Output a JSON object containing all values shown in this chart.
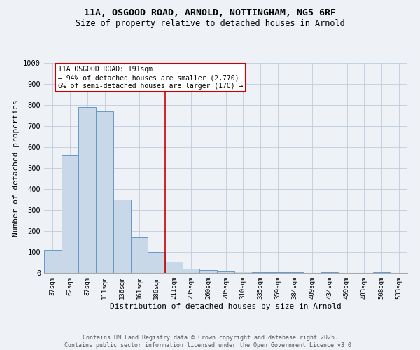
{
  "title_line1": "11A, OSGOOD ROAD, ARNOLD, NOTTINGHAM, NG5 6RF",
  "title_line2": "Size of property relative to detached houses in Arnold",
  "xlabel": "Distribution of detached houses by size in Arnold",
  "ylabel": "Number of detached properties",
  "categories": [
    "37sqm",
    "62sqm",
    "87sqm",
    "111sqm",
    "136sqm",
    "161sqm",
    "186sqm",
    "211sqm",
    "235sqm",
    "260sqm",
    "285sqm",
    "310sqm",
    "335sqm",
    "359sqm",
    "384sqm",
    "409sqm",
    "434sqm",
    "459sqm",
    "483sqm",
    "508sqm",
    "533sqm"
  ],
  "values": [
    110,
    560,
    790,
    770,
    350,
    170,
    100,
    55,
    20,
    15,
    10,
    7,
    5,
    3,
    2,
    1,
    5,
    1,
    1,
    5,
    1
  ],
  "bar_color": "#c8d8e8",
  "bar_edge_color": "#6699cc",
  "red_line_index": 6.5,
  "annotation_text": "11A OSGOOD ROAD: 191sqm\n← 94% of detached houses are smaller (2,770)\n6% of semi-detached houses are larger (170) →",
  "annotation_box_color": "#ffffff",
  "annotation_box_edge": "#cc0000",
  "red_line_color": "#cc0000",
  "background_color": "#eef2f7",
  "grid_color": "#c0ccdd",
  "ylim": [
    0,
    1000
  ],
  "yticks": [
    0,
    100,
    200,
    300,
    400,
    500,
    600,
    700,
    800,
    900,
    1000
  ],
  "footer_line1": "Contains HM Land Registry data © Crown copyright and database right 2025.",
  "footer_line2": "Contains public sector information licensed under the Open Government Licence v3.0."
}
